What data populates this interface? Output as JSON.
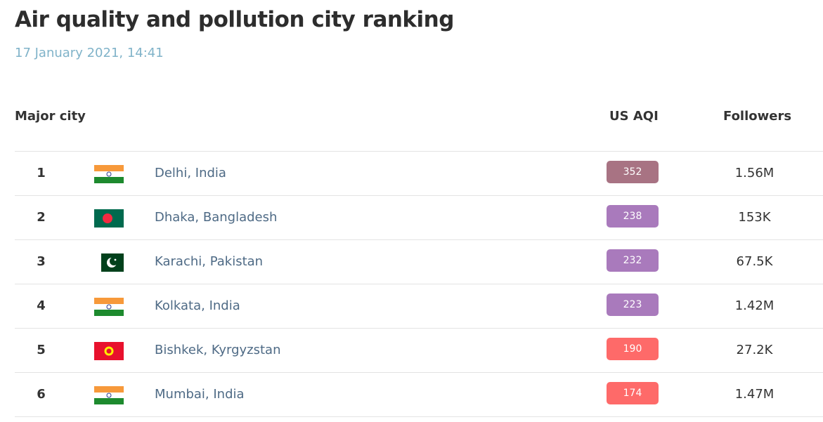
{
  "header": {
    "title": "Air quality and pollution city ranking",
    "date": "17 January 2021, 14:41"
  },
  "columns": {
    "city": "Major city",
    "aqi": "US AQI",
    "followers": "Followers"
  },
  "rows": [
    {
      "rank": "1",
      "flag": "india-flag",
      "city": "Delhi, India",
      "aqi": "352",
      "aqi_color": "#a87383",
      "followers": "1.56M"
    },
    {
      "rank": "2",
      "flag": "bangladesh-flag",
      "city": "Dhaka, Bangladesh",
      "aqi": "238",
      "aqi_color": "#a97abc",
      "followers": "153K"
    },
    {
      "rank": "3",
      "flag": "pakistan-flag",
      "city": "Karachi, Pakistan",
      "aqi": "232",
      "aqi_color": "#a97abc",
      "followers": "67.5K"
    },
    {
      "rank": "4",
      "flag": "india-flag",
      "city": "Kolkata, India",
      "aqi": "223",
      "aqi_color": "#a97abc",
      "followers": "1.42M"
    },
    {
      "rank": "5",
      "flag": "kyrgyzstan-flag",
      "city": "Bishkek, Kyrgyzstan",
      "aqi": "190",
      "aqi_color": "#fe6a69",
      "followers": "27.2K"
    },
    {
      "rank": "6",
      "flag": "india-flag",
      "city": "Mumbai, India",
      "aqi": "174",
      "aqi_color": "#fe6a69",
      "followers": "1.47M"
    }
  ]
}
